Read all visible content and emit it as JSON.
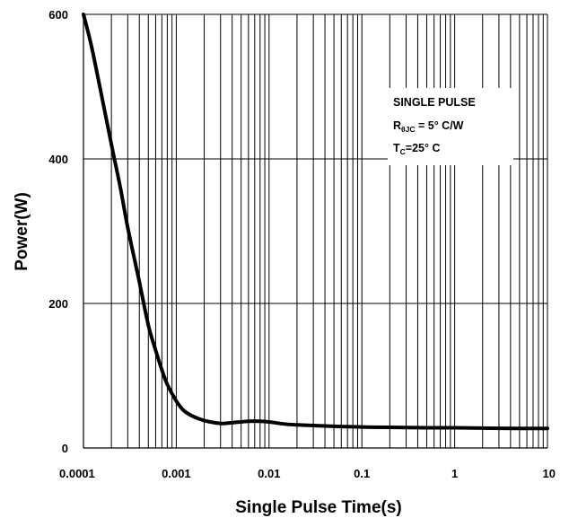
{
  "chart_data": {
    "type": "line",
    "title": "",
    "xlabel": "Single Pulse Time(s)",
    "ylabel": "Power(W)",
    "xscale": "log",
    "xlim": [
      0.0001,
      10
    ],
    "ylim": [
      0,
      600
    ],
    "x_tick_labels": [
      "0.0001",
      "0.001",
      "0.01",
      "0.1",
      "1",
      "10"
    ],
    "x_tick_values": [
      0.0001,
      0.001,
      0.01,
      0.1,
      1,
      10
    ],
    "y_tick_labels": [
      "0",
      "200",
      "400",
      "600"
    ],
    "y_tick_values": [
      0,
      200,
      400,
      600
    ],
    "grid": true,
    "legend": "none",
    "line_color": "#000000",
    "annotation": {
      "line1": "SINGLE PULSE",
      "line2_main": "R",
      "line2_sub": "θJC",
      "line2_rest": " = 5° C/W",
      "line3_main": "T",
      "line3_sub": "C",
      "line3_rest": "=25° C"
    },
    "series": [
      {
        "x": [
          0.0001,
          0.00012,
          0.00015,
          0.0002,
          0.00025,
          0.0003,
          0.0004,
          0.0005,
          0.0006,
          0.0007,
          0.0008,
          0.001,
          0.0012,
          0.0015,
          0.002,
          0.003,
          0.004,
          0.006,
          0.008,
          0.01,
          0.015,
          0.02,
          0.03,
          0.05,
          0.1,
          0.2,
          0.5,
          1,
          2,
          5,
          10
        ],
        "values": [
          600,
          560,
          500,
          420,
          360,
          305,
          230,
          170,
          135,
          108,
          88,
          65,
          52,
          44,
          38,
          34,
          35,
          37,
          37,
          36,
          33,
          32,
          31,
          30,
          29,
          28.5,
          28,
          28,
          27.5,
          27,
          27
        ]
      }
    ]
  }
}
